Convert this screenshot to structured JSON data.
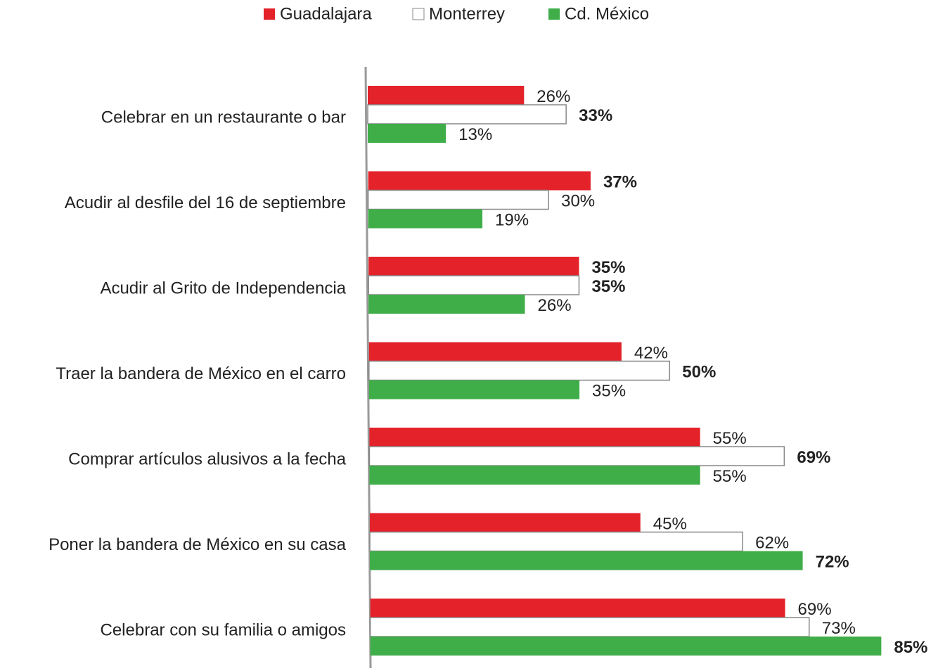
{
  "chart_data": {
    "type": "hbar",
    "categories": [
      "Celebrar en un restaurante o bar",
      "Acudir al desfile del 16 de septiembre",
      "Acudir al Grito de Independencia",
      "Traer la bandera de México en el carro",
      "Comprar artículos alusivos a la fecha",
      "Poner la bandera de México en su casa",
      "Celebrar con su familia o amigos"
    ],
    "series": [
      {
        "name": "Guadalajara",
        "color": "#e3222a",
        "values": [
          26,
          37,
          35,
          42,
          55,
          45,
          69
        ],
        "value_labels": [
          "26%",
          "37%",
          "35%",
          "42%",
          "55%",
          "45%",
          "69%"
        ]
      },
      {
        "name": "Monterrey",
        "color": "#ffffff",
        "values": [
          33,
          30,
          35,
          50,
          69,
          62,
          73
        ],
        "value_labels": [
          "33%",
          "30%",
          "35%",
          "50%",
          "69%",
          "62%",
          "73%"
        ]
      },
      {
        "name": "Cd. México",
        "color": "#3fae49",
        "values": [
          13,
          19,
          26,
          35,
          55,
          72,
          85
        ],
        "value_labels": [
          "13%",
          "19%",
          "26%",
          "35%",
          "55%",
          "72%",
          "85%"
        ]
      }
    ],
    "legend": "top"
  }
}
